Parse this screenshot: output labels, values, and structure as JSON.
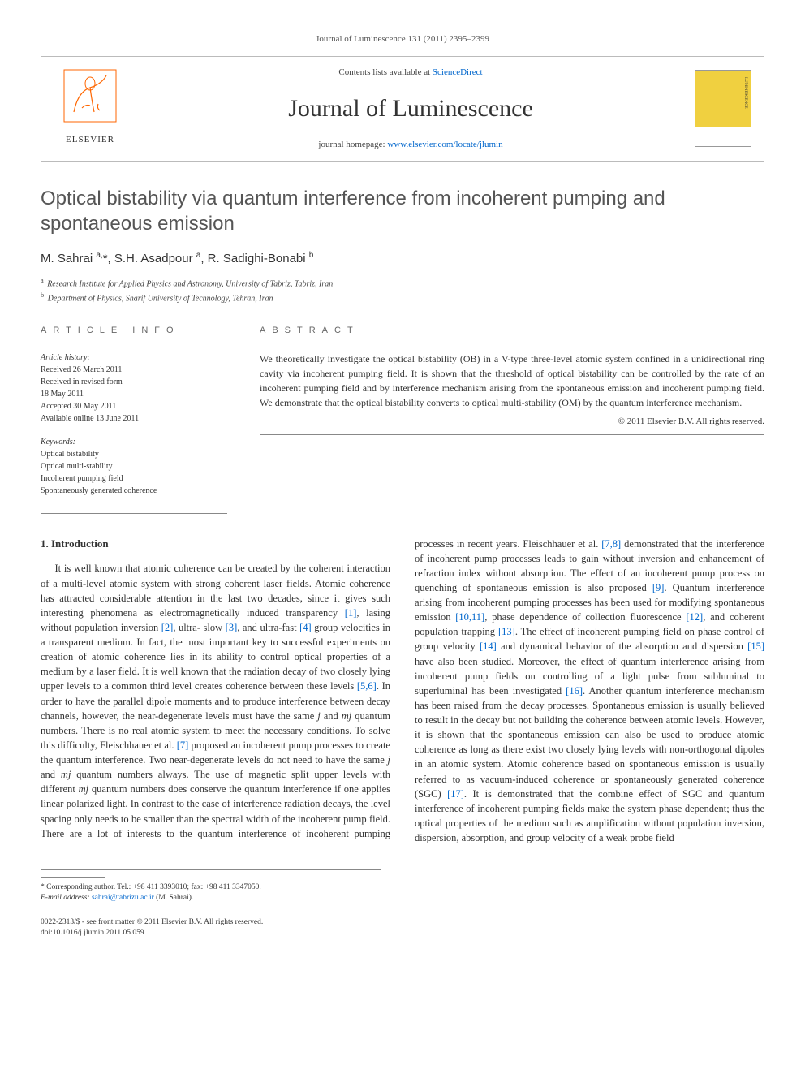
{
  "header": {
    "citation": "Journal of Luminescence 131 (2011) 2395–2399",
    "contents_line_prefix": "Contents lists available at ",
    "contents_link": "ScienceDirect",
    "journal_name": "Journal of Luminescence",
    "homepage_prefix": "journal homepage: ",
    "homepage_link": "www.elsevier.com/locate/jlumin",
    "publisher": "ELSEVIER"
  },
  "article": {
    "title": "Optical bistability via quantum interference from incoherent pumping and spontaneous emission",
    "authors_html": "M. Sahrai <sup>a,</sup>*, S.H. Asadpour <sup>a</sup>, R. Sadighi-Bonabi <sup>b</sup>",
    "affiliations": [
      {
        "sup": "a",
        "text": "Research Institute for Applied Physics and Astronomy, University of Tabriz, Tabriz, Iran"
      },
      {
        "sup": "b",
        "text": "Department of Physics, Sharif University of Technology, Tehran, Iran"
      }
    ]
  },
  "info": {
    "label": "ARTICLE INFO",
    "history_head": "Article history:",
    "history": [
      "Received 26 March 2011",
      "Received in revised form",
      "18 May 2011",
      "Accepted 30 May 2011",
      "Available online 13 June 2011"
    ],
    "keywords_head": "Keywords:",
    "keywords": [
      "Optical bistability",
      "Optical multi-stability",
      "Incoherent pumping field",
      "Spontaneously generated coherence"
    ]
  },
  "abstract": {
    "label": "ABSTRACT",
    "text": "We theoretically investigate the optical bistability (OB) in a V-type three-level atomic system confined in a unidirectional ring cavity via incoherent pumping field. It is shown that the threshold of optical bistability can be controlled by the rate of an incoherent pumping field and by interference mechanism arising from the spontaneous emission and incoherent pumping field. We demonstrate that the optical bistability converts to optical multi-stability (OM) by the quantum interference mechanism.",
    "copyright": "© 2011 Elsevier B.V. All rights reserved."
  },
  "body": {
    "heading": "1. Introduction",
    "col1": "It is well known that atomic coherence can be created by the coherent interaction of a multi-level atomic system with strong coherent laser fields. Atomic coherence has attracted considerable attention in the last two decades, since it gives such interesting phenomena as electromagnetically induced transparency [1], lasing without population inversion [2], ultra- slow [3], and ultra-fast [4] group velocities in a transparent medium. In fact, the most important key to successful experiments on creation of atomic coherence lies in its ability to control optical properties of a medium by a laser field. It is well known that the radiation decay of two closely lying upper levels to a common third level creates coherence between these levels [5,6]. In order to have the parallel dipole moments and to produce interference between decay channels, however, the near-degenerate levels must have the same j and mj quantum numbers. There is no real atomic system to meet the necessary conditions. To solve this difficulty, Fleischhauer et al. [7] proposed an incoherent pump processes to create the quantum interference. Two near-degenerate levels do not need to have the same j and mj quantum numbers always. The use of magnetic split upper levels with different mj quantum numbers does conserve the quantum interference if one applies linear polarized light. In contrast to the case of interference radiation decays, the level spacing only needs to be smaller than",
    "col2": "the spectral width of the incoherent pump field. There are a lot of interests to the quantum interference of incoherent pumping processes in recent years. Fleischhauer et al. [7,8] demonstrated that the interference of incoherent pump processes leads to gain without inversion and enhancement of refraction index without absorption. The effect of an incoherent pump process on quenching of spontaneous emission is also proposed [9]. Quantum interference arising from incoherent pumping processes has been used for modifying spontaneous emission [10,11], phase dependence of collection fluorescence [12], and coherent population trapping [13]. The effect of incoherent pumping field on phase control of group velocity [14] and dynamical behavior of the absorption and dispersion [15] have also been studied. Moreover, the effect of quantum interference arising from incoherent pump fields on controlling of a light pulse from subluminal to superluminal has been investigated [16]. Another quantum interference mechanism has been raised from the decay processes. Spontaneous emission is usually believed to result in the decay but not building the coherence between atomic levels. However, it is shown that the spontaneous emission can also be used to produce atomic coherence as long as there exist two closely lying levels with non-orthogonal dipoles in an atomic system. Atomic coherence based on spontaneous emission is usually referred to as vacuum-induced coherence or spontaneously generated coherence (SGC) [17]. It is demonstrated that the combine effect of SGC and quantum interference of incoherent pumping fields make the system phase dependent; thus the optical properties of the medium such as amplification without population inversion, dispersion, absorption, and group velocity of a weak probe field"
  },
  "footer": {
    "corresponding": "* Corresponding author. Tel.: +98 411 3393010; fax: +98 411 3347050.",
    "email_label": "E-mail address: ",
    "email": "sahrai@tabrizu.ac.ir",
    "email_suffix": " (M. Sahrai).",
    "issn": "0022-2313/$ - see front matter © 2011 Elsevier B.V. All rights reserved.",
    "doi": "doi:10.1016/j.jlumin.2011.05.059"
  },
  "refs": [
    "[1]",
    "[2]",
    "[3]",
    "[4]",
    "[5,6]",
    "[7]",
    "[7,8]",
    "[9]",
    "[10,11]",
    "[12]",
    "[13]",
    "[14]",
    "[15]",
    "[16]",
    "[17]"
  ],
  "colors": {
    "link": "#0066cc",
    "text": "#333333",
    "rule": "#888888",
    "elsevier_orange": "#ff6600"
  }
}
